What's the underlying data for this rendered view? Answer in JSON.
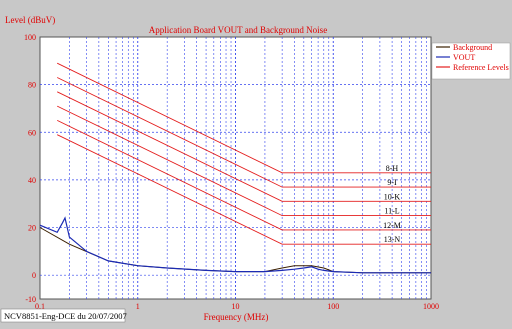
{
  "chart_data": {
    "type": "line",
    "title": "Application Board VOUT and Background Noise",
    "ylabel": "Level (dBuV)",
    "xlabel": "Frequency (MHz)",
    "footer": "NCV8851-Eng-DCE du 20/07/2007",
    "x_scale": "log",
    "xlim": [
      0.1,
      1000
    ],
    "ylim": [
      -10,
      100
    ],
    "x_ticks": [
      {
        "value": 0.1,
        "label": "0.1"
      },
      {
        "value": 1,
        "label": "1"
      },
      {
        "value": 10,
        "label": "10"
      },
      {
        "value": 100,
        "label": "100"
      },
      {
        "value": 1000,
        "label": "1000"
      }
    ],
    "y_ticks": [
      {
        "value": -10,
        "label": "-10"
      },
      {
        "value": 0,
        "label": "0"
      },
      {
        "value": 20,
        "label": "20"
      },
      {
        "value": 40,
        "label": "40"
      },
      {
        "value": 60,
        "label": "60"
      },
      {
        "value": 80,
        "label": "80"
      },
      {
        "value": 100,
        "label": "100"
      }
    ],
    "grid": true,
    "legend_position": "top-right",
    "legend": [
      {
        "label": "Background",
        "color": "#3a1f00"
      },
      {
        "label": "VOUT",
        "color": "#1c2bb3"
      },
      {
        "label": "Reference Levels",
        "color": "#e41f1f"
      }
    ],
    "reference_levels": [
      {
        "name": "8-H",
        "points": [
          [
            0.15,
            89
          ],
          [
            30,
            43
          ],
          [
            1000,
            43
          ]
        ]
      },
      {
        "name": "9-I",
        "points": [
          [
            0.15,
            83
          ],
          [
            30,
            37
          ],
          [
            1000,
            37
          ]
        ]
      },
      {
        "name": "10-K",
        "points": [
          [
            0.15,
            77
          ],
          [
            30,
            31
          ],
          [
            1000,
            31
          ]
        ]
      },
      {
        "name": "11-L",
        "points": [
          [
            0.15,
            71
          ],
          [
            30,
            25
          ],
          [
            1000,
            25
          ]
        ]
      },
      {
        "name": "12-M",
        "points": [
          [
            0.15,
            65
          ],
          [
            30,
            19
          ],
          [
            1000,
            19
          ]
        ]
      },
      {
        "name": "13-N",
        "points": [
          [
            0.15,
            59
          ],
          [
            30,
            13
          ],
          [
            1000,
            13
          ]
        ]
      }
    ],
    "series": [
      {
        "name": "Background",
        "color": "#3a1f00",
        "x": [
          0.1,
          0.2,
          0.5,
          1,
          2,
          5,
          10,
          20,
          30,
          40,
          60,
          80,
          100,
          200,
          500,
          1000
        ],
        "y": [
          20,
          13,
          6,
          4,
          3,
          2,
          1.5,
          1.5,
          3,
          4,
          4,
          3,
          1.5,
          1,
          1,
          1
        ]
      },
      {
        "name": "VOUT",
        "color": "#1c2bb3",
        "x": [
          0.1,
          0.15,
          0.17,
          0.18,
          0.2,
          0.3,
          0.5,
          1,
          2,
          5,
          10,
          20,
          30,
          40,
          50,
          60,
          70,
          80,
          100,
          200,
          500,
          1000
        ],
        "y": [
          21,
          18,
          22,
          24,
          16,
          10,
          6,
          4,
          3,
          2,
          1.5,
          1.5,
          2,
          2.5,
          3,
          3.5,
          2.5,
          2,
          1.5,
          1,
          1,
          1
        ]
      }
    ]
  }
}
